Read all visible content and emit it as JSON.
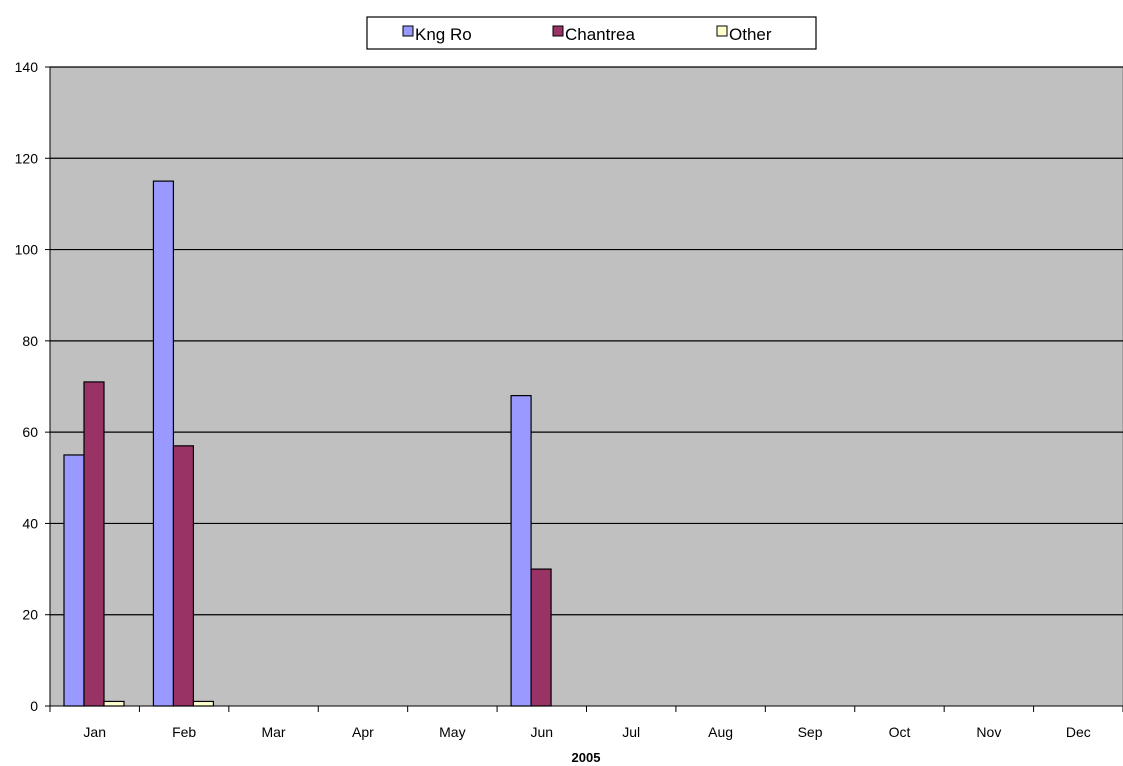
{
  "chart_data": {
    "type": "bar",
    "title": "",
    "xlabel": "2005",
    "ylabel": "",
    "ylim": [
      0,
      140
    ],
    "yticks": [
      0,
      20,
      40,
      60,
      80,
      100,
      120,
      140
    ],
    "categories": [
      "Jan",
      "Feb",
      "Mar",
      "Apr",
      "May",
      "Jun",
      "Jul",
      "Aug",
      "Sep",
      "Oct",
      "Nov",
      "Dec"
    ],
    "series": [
      {
        "name": "Kng Ro",
        "color": "#9999ff",
        "values": [
          55,
          115,
          0,
          0,
          0,
          68,
          0,
          0,
          0,
          0,
          0,
          0
        ]
      },
      {
        "name": "Chantrea",
        "color": "#993366",
        "values": [
          71,
          57,
          0,
          0,
          0,
          30,
          0,
          0,
          0,
          0,
          0,
          0
        ]
      },
      {
        "name": "Other",
        "color": "#ffffcc",
        "values": [
          1,
          1,
          0,
          0,
          0,
          0,
          0,
          0,
          0,
          0,
          0,
          0
        ]
      }
    ],
    "grid": true,
    "plot_background": "#c0c0c0",
    "legend_position": "top-center"
  }
}
